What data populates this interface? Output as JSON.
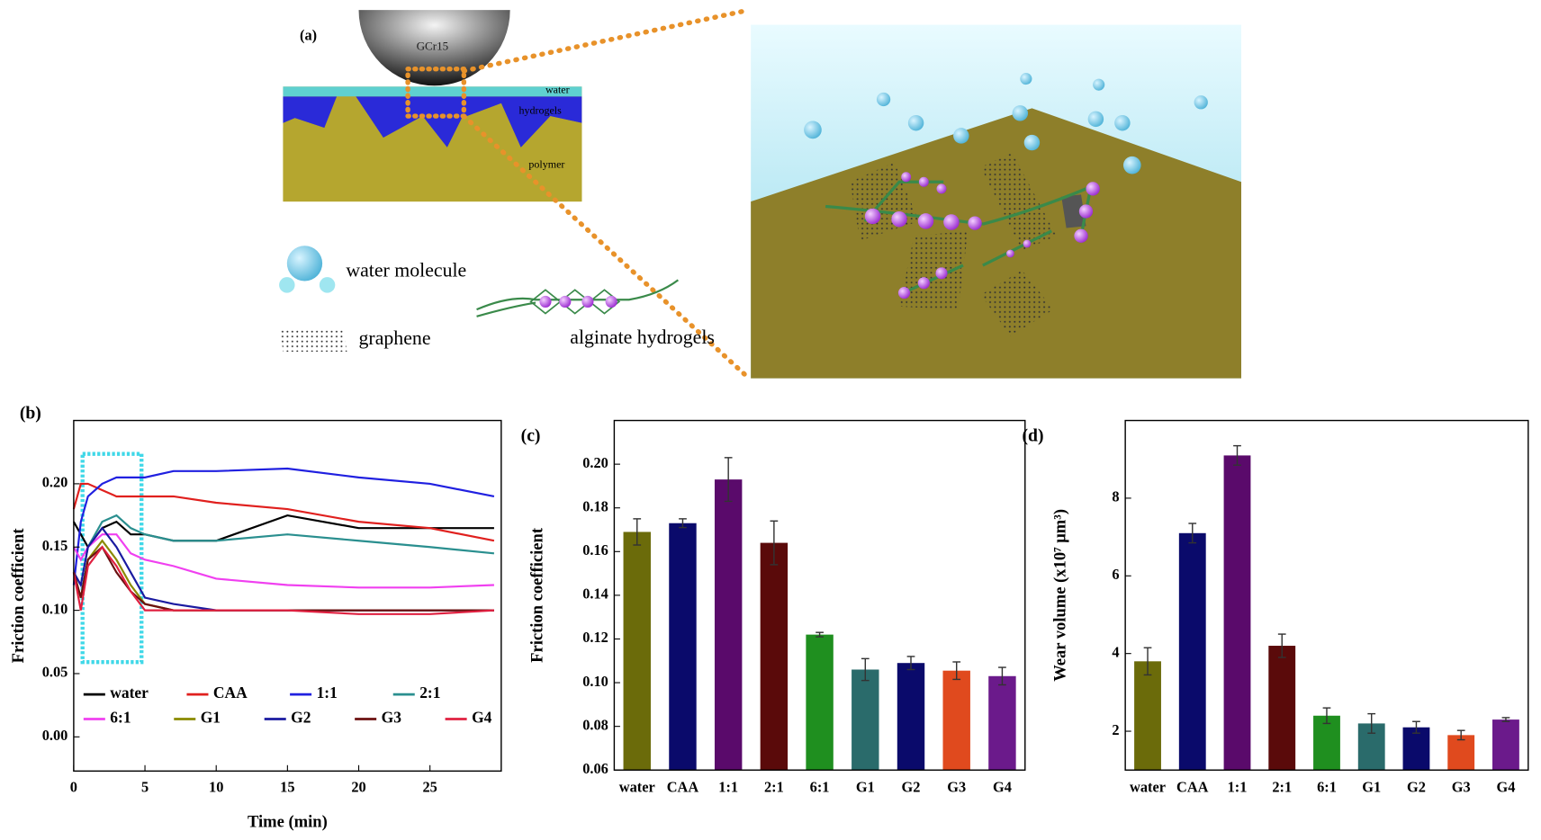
{
  "diagram": {
    "panel": "(a)",
    "labels": {
      "ball": "GCr15",
      "water": "water",
      "hydrogels": "hydrogels",
      "polymer": "polymer",
      "water_molecule": "water molecule",
      "graphene": "graphene",
      "alginate": "alginate hydrogels"
    }
  },
  "chart_data": [
    {
      "type": "line",
      "panel": "(b)",
      "xlabel": "Time (min)",
      "ylabel": "Friction coefficient",
      "x": [
        0,
        0.5,
        1,
        2,
        3,
        4,
        5,
        7,
        10,
        15,
        20,
        25,
        29.5
      ],
      "xlim": [
        0,
        30
      ],
      "xticks": [
        0,
        5,
        10,
        15,
        20,
        25
      ],
      "ylim": [
        -0.027,
        0.25
      ],
      "yticks": [
        {
          "value": 0,
          "label": "0.00"
        },
        {
          "value": 0.05,
          "label": "0.05"
        },
        {
          "value": 0.1,
          "label": "0.10"
        },
        {
          "value": 0.15,
          "label": "0.15"
        },
        {
          "value": 0.2,
          "label": "0.20"
        }
      ],
      "legend": "lower left",
      "series": [
        {
          "name": "water",
          "color": "#000000",
          "values": [
            0.17,
            0.16,
            0.15,
            0.165,
            0.17,
            0.16,
            0.16,
            0.155,
            0.155,
            0.175,
            0.165,
            0.165,
            0.165
          ]
        },
        {
          "name": "CAA",
          "color": "#e0201e",
          "values": [
            0.18,
            0.2,
            0.2,
            0.195,
            0.19,
            0.19,
            0.19,
            0.19,
            0.185,
            0.18,
            0.17,
            0.165,
            0.155
          ]
        },
        {
          "name": "1:1",
          "color": "#2020e0",
          "values": [
            0.12,
            0.17,
            0.19,
            0.2,
            0.205,
            0.205,
            0.205,
            0.21,
            0.21,
            0.212,
            0.205,
            0.2,
            0.19
          ]
        },
        {
          "name": "2:1",
          "color": "#2a8f8f",
          "values": [
            0.13,
            0.12,
            0.15,
            0.17,
            0.175,
            0.165,
            0.16,
            0.155,
            0.155,
            0.16,
            0.155,
            0.15,
            0.145
          ]
        },
        {
          "name": "6:1",
          "color": "#f040f0",
          "values": [
            0.15,
            0.14,
            0.15,
            0.16,
            0.16,
            0.145,
            0.14,
            0.135,
            0.125,
            0.12,
            0.118,
            0.118,
            0.12
          ]
        },
        {
          "name": "G1",
          "color": "#8a8a00",
          "values": [
            0.13,
            0.11,
            0.14,
            0.155,
            0.14,
            0.12,
            0.105,
            0.1,
            0.1,
            0.1,
            0.1,
            0.1,
            0.1
          ]
        },
        {
          "name": "G2",
          "color": "#1a1aa0",
          "values": [
            0.13,
            0.12,
            0.15,
            0.165,
            0.15,
            0.13,
            0.11,
            0.105,
            0.1,
            0.1,
            0.1,
            0.1,
            0.1
          ]
        },
        {
          "name": "G3",
          "color": "#6b1010",
          "values": [
            0.13,
            0.11,
            0.14,
            0.15,
            0.13,
            0.115,
            0.105,
            0.1,
            0.1,
            0.1,
            0.1,
            0.1,
            0.1
          ]
        },
        {
          "name": "G4",
          "color": "#e02040",
          "values": [
            0.13,
            0.1,
            0.135,
            0.15,
            0.135,
            0.115,
            0.1,
            0.1,
            0.1,
            0.1,
            0.097,
            0.097,
            0.1
          ]
        }
      ]
    },
    {
      "type": "bar",
      "panel": "(c)",
      "ylabel": "Friction coefficient",
      "categories": [
        "water",
        "CAA",
        "1:1",
        "2:1",
        "6:1",
        "G1",
        "G2",
        "G3",
        "G4"
      ],
      "values": [
        0.169,
        0.173,
        0.193,
        0.164,
        0.122,
        0.106,
        0.109,
        0.1055,
        0.103
      ],
      "errors": [
        0.006,
        0.002,
        0.01,
        0.01,
        0.001,
        0.005,
        0.003,
        0.004,
        0.004
      ],
      "colors": [
        "#6b6b0a",
        "#0a0a6b",
        "#5a0a6b",
        "#5a0a0a",
        "#1f8f1f",
        "#2a6b6b",
        "#0a0a6b",
        "#e04a1e",
        "#6b1a8b"
      ],
      "ylim": [
        0.06,
        0.22
      ],
      "yticks": [
        {
          "value": 0.06,
          "label": "0.06"
        },
        {
          "value": 0.08,
          "label": "0.08"
        },
        {
          "value": 0.1,
          "label": "0.10"
        },
        {
          "value": 0.12,
          "label": "0.12"
        },
        {
          "value": 0.14,
          "label": "0.14"
        },
        {
          "value": 0.16,
          "label": "0.16"
        },
        {
          "value": 0.18,
          "label": "0.18"
        },
        {
          "value": 0.2,
          "label": "0.20"
        }
      ]
    },
    {
      "type": "bar",
      "panel": "(d)",
      "ylabel": "Wear volume (x10⁷ μm³)",
      "categories": [
        "water",
        "CAA",
        "1:1",
        "2:1",
        "6:1",
        "G1",
        "G2",
        "G3",
        "G4"
      ],
      "values": [
        3.8,
        7.1,
        9.1,
        4.2,
        2.4,
        2.2,
        2.1,
        1.9,
        2.3
      ],
      "errors": [
        0.35,
        0.25,
        0.25,
        0.3,
        0.2,
        0.25,
        0.15,
        0.12,
        0.05
      ],
      "colors": [
        "#6b6b0a",
        "#0a0a6b",
        "#5a0a6b",
        "#5a0a0a",
        "#1f8f1f",
        "#2a6b6b",
        "#0a0a6b",
        "#e04a1e",
        "#6b1a8b"
      ],
      "ylim": [
        1,
        10
      ],
      "yticks": [
        2,
        4,
        6,
        8
      ]
    }
  ]
}
